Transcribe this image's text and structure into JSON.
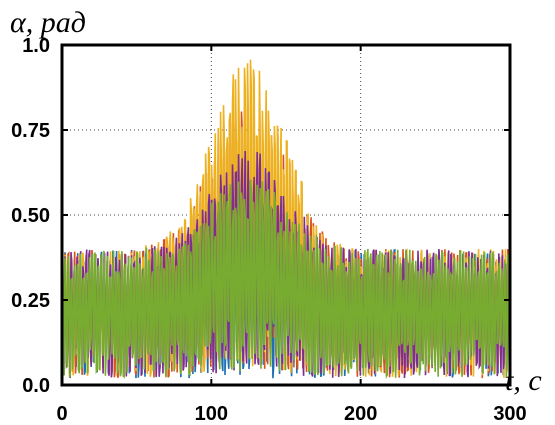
{
  "chart_data": {
    "type": "line",
    "ylabel": "α, рад",
    "xlabel": "t, c",
    "xlim": [
      0,
      300
    ],
    "ylim": [
      0,
      1.0
    ],
    "x_ticks": [
      "0",
      "100",
      "200",
      "300"
    ],
    "y_ticks": [
      "0.0",
      "0.25",
      "0.50",
      "0.75",
      "1.0"
    ],
    "grid": "dotted",
    "series_colors": [
      "#1f6fb4",
      "#d95319",
      "#edb120",
      "#7e2f8e",
      "#77ac30"
    ],
    "series": [
      {
        "color": "#1f6fb4",
        "peak": 0.4,
        "points": 600
      },
      {
        "color": "#d95319",
        "peak": 0.85,
        "points": 600
      },
      {
        "color": "#edb120",
        "peak": 0.96,
        "points": 600
      },
      {
        "color": "#7e2f8e",
        "peak": 0.7,
        "points": 600
      },
      {
        "color": "#77ac30",
        "peak": 0.62,
        "points": 600
      }
    ]
  }
}
